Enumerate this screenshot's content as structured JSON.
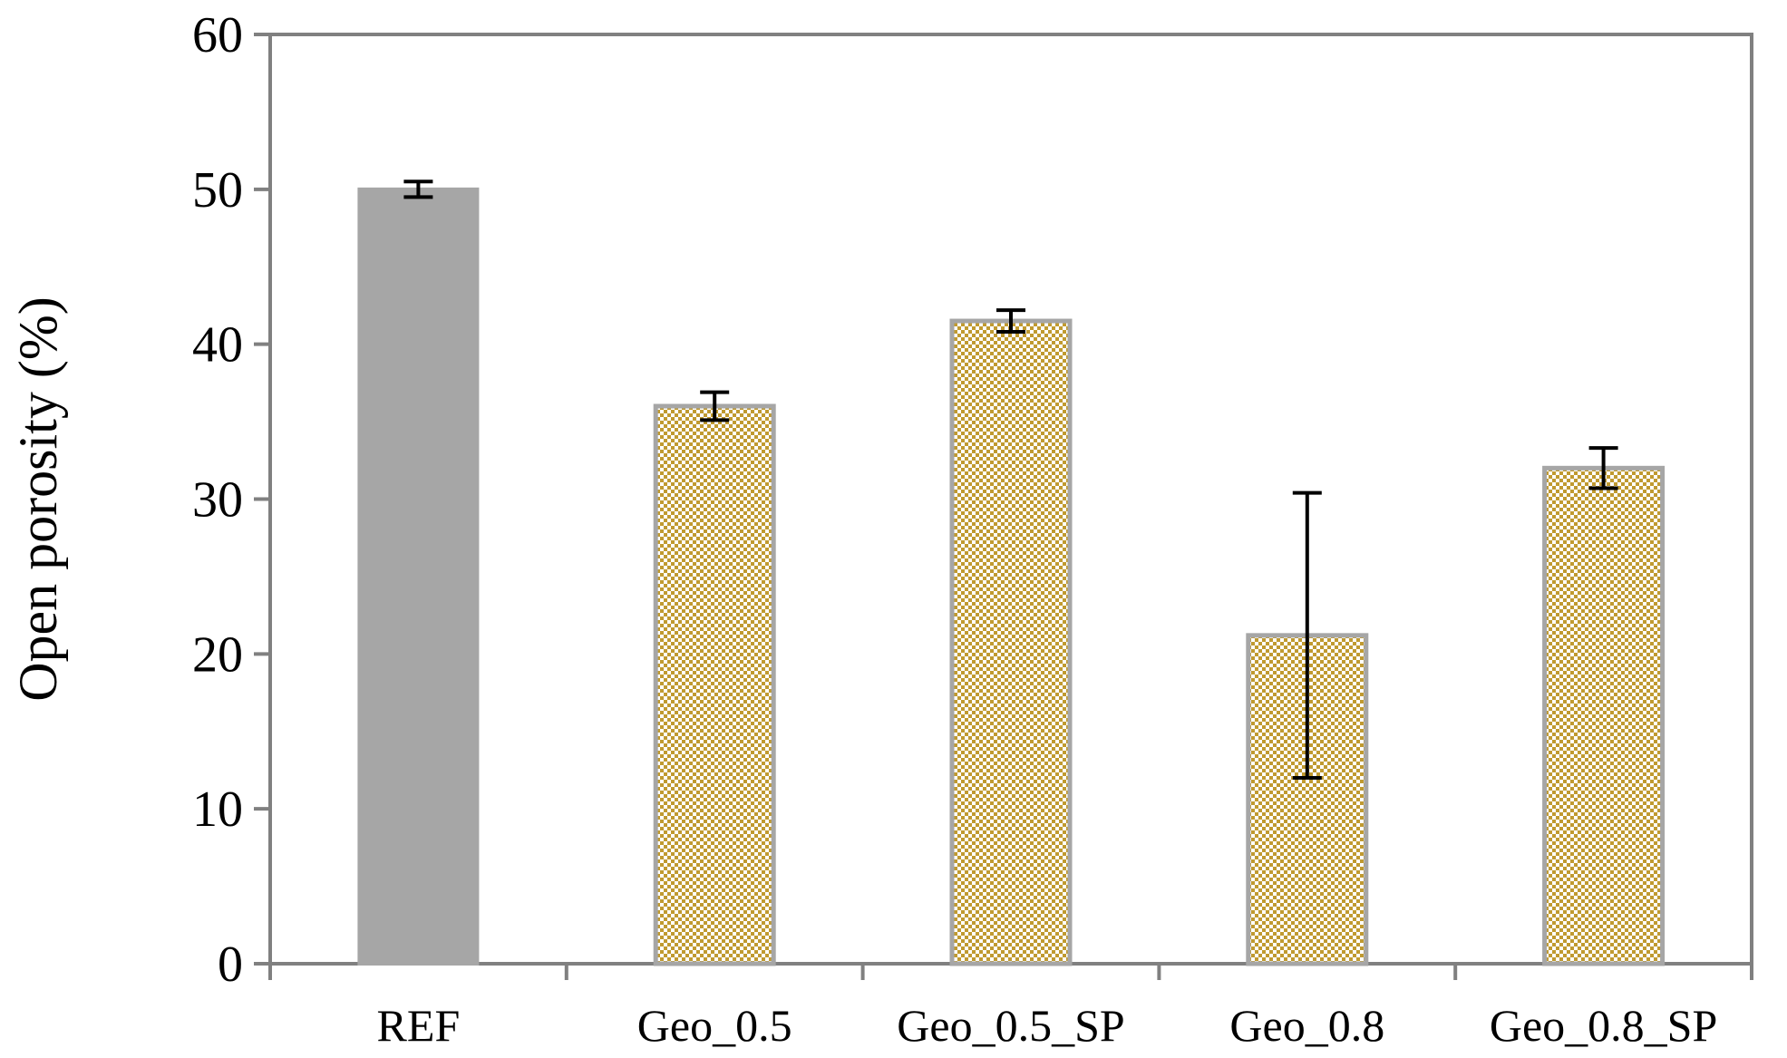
{
  "chart_data": {
    "type": "bar",
    "title": "",
    "xlabel": "",
    "ylabel": "Open porosity (%)",
    "ylim": [
      0,
      60
    ],
    "yticks": [
      0,
      10,
      20,
      30,
      40,
      50,
      60
    ],
    "grid": false,
    "categories": [
      "REF",
      "Geo_0.5",
      "Geo_0.5_SP",
      "Geo_0.8",
      "Geo_0.8_SP"
    ],
    "values": [
      50.0,
      36.0,
      41.5,
      21.2,
      32.0
    ],
    "errors": [
      0.5,
      0.9,
      0.7,
      9.2,
      1.3
    ],
    "styles": [
      "solid",
      "checker",
      "checker",
      "checker",
      "checker"
    ],
    "colors": {
      "ref_fill": "#a6a6a6",
      "pattern_primary": "#c09a30",
      "pattern_secondary": "#ffffff",
      "bar_border": "#a6a6a6",
      "axis": "#808080",
      "error_bar": "#000000"
    }
  }
}
